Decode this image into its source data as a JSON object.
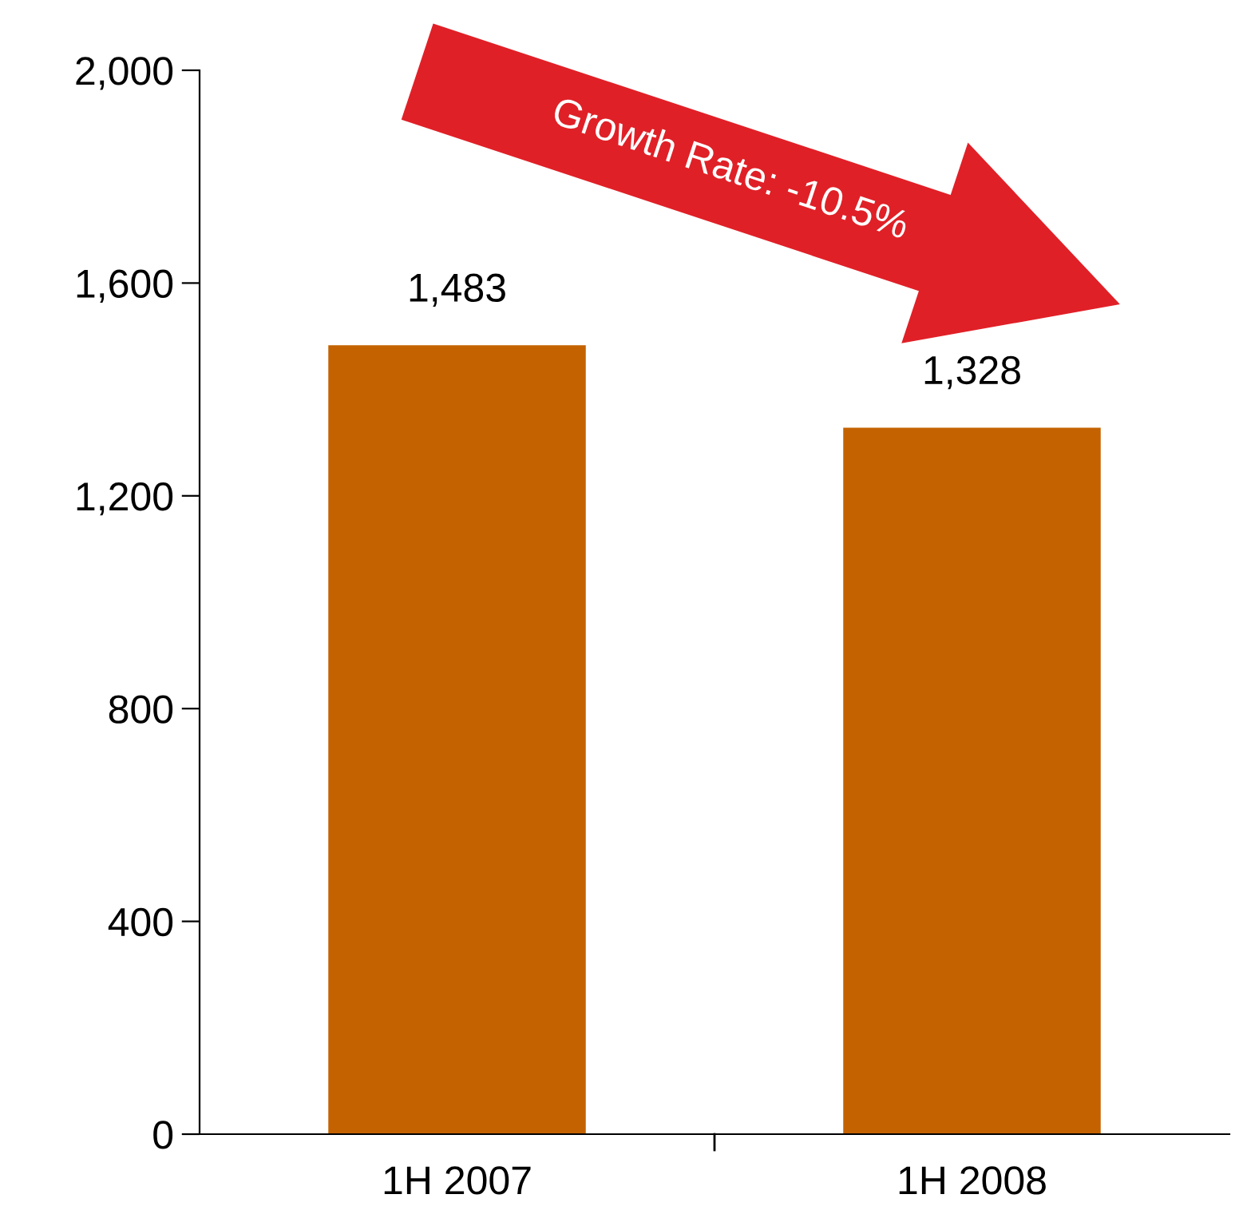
{
  "chart_data": {
    "type": "bar",
    "categories": [
      "1H 2007",
      "1H 2008"
    ],
    "values": [
      1483,
      1328
    ],
    "color": "#c46200",
    "value_labels": [
      "1,483",
      "1,328"
    ],
    "ylim": [
      0,
      2000
    ],
    "yticks": [
      0,
      {
        "value": 400,
        "label": "400"
      },
      {
        "value": 800,
        "label": "800"
      },
      {
        "value": 1200,
        "label": "1,200"
      },
      {
        "value": 1600,
        "label": "1,600"
      },
      {
        "value": 2000,
        "label": "2,000"
      }
    ],
    "annotations": [
      "Growth Rate: -10.5%"
    ],
    "grid": false
  }
}
